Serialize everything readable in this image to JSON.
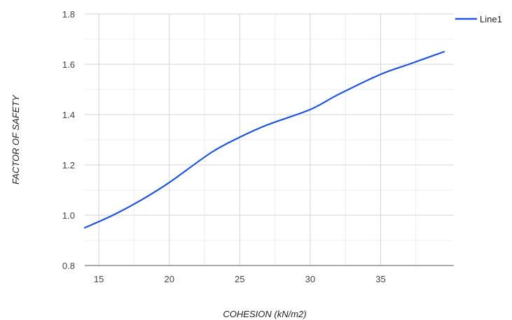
{
  "chart_data": {
    "type": "line",
    "xlabel": "COHESION (kN/m2)",
    "ylabel": "FACTOR OF SAFETY",
    "xlim": [
      14,
      39.5
    ],
    "ylim": [
      0.8,
      1.8
    ],
    "x_ticks": [
      15,
      20,
      25,
      30,
      35
    ],
    "y_ticks": [
      0.8,
      1.0,
      1.2,
      1.4,
      1.6,
      1.8
    ],
    "grid": true,
    "legend": "top-right",
    "series": [
      {
        "name": "Line1",
        "color": "#2155d9",
        "x": [
          14,
          16,
          18,
          20,
          23,
          25,
          27,
          30,
          32,
          35,
          37,
          39.5
        ],
        "y": [
          0.95,
          1.0,
          1.06,
          1.13,
          1.25,
          1.31,
          1.36,
          1.42,
          1.48,
          1.56,
          1.6,
          1.65
        ]
      }
    ]
  }
}
